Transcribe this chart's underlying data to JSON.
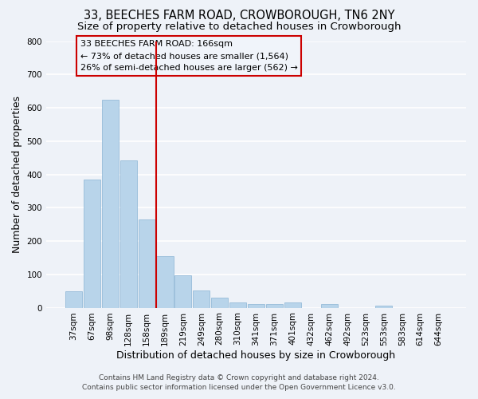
{
  "title": "33, BEECHES FARM ROAD, CROWBOROUGH, TN6 2NY",
  "subtitle": "Size of property relative to detached houses in Crowborough",
  "xlabel": "Distribution of detached houses by size in Crowborough",
  "ylabel": "Number of detached properties",
  "bin_labels": [
    "37sqm",
    "67sqm",
    "98sqm",
    "128sqm",
    "158sqm",
    "189sqm",
    "219sqm",
    "249sqm",
    "280sqm",
    "310sqm",
    "341sqm",
    "371sqm",
    "401sqm",
    "432sqm",
    "462sqm",
    "492sqm",
    "523sqm",
    "553sqm",
    "583sqm",
    "614sqm",
    "644sqm"
  ],
  "bar_heights": [
    50,
    385,
    625,
    443,
    265,
    155,
    97,
    52,
    30,
    15,
    10,
    10,
    15,
    0,
    10,
    0,
    0,
    5,
    0,
    0,
    0
  ],
  "bar_color": "#b8d4ea",
  "bar_edge_color": "#8ab4d4",
  "vline_color": "#cc0000",
  "annotation_line1": "33 BEECHES FARM ROAD: 166sqm",
  "annotation_line2": "← 73% of detached houses are smaller (1,564)",
  "annotation_line3": "26% of semi-detached houses are larger (562) →",
  "box_facecolor": "#f0f4fa",
  "box_edgecolor": "#cc0000",
  "ylim": [
    0,
    800
  ],
  "yticks": [
    0,
    100,
    200,
    300,
    400,
    500,
    600,
    700,
    800
  ],
  "footnote1": "Contains HM Land Registry data © Crown copyright and database right 2024.",
  "footnote2": "Contains public sector information licensed under the Open Government Licence v3.0.",
  "bg_color": "#eef2f8",
  "plot_bg_color": "#eef2f8",
  "grid_color": "#ffffff",
  "title_fontsize": 10.5,
  "subtitle_fontsize": 9.5,
  "axis_label_fontsize": 9,
  "tick_fontsize": 7.5,
  "annotation_fontsize": 8,
  "footnote_fontsize": 6.5
}
